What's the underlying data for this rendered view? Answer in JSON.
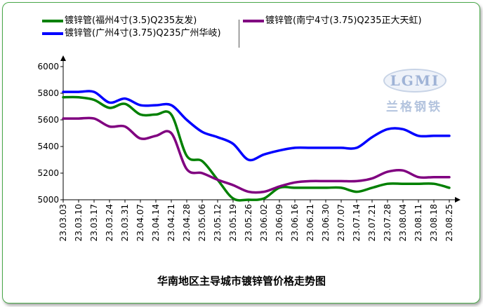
{
  "chart_data": {
    "type": "line",
    "title": "华南地区主导城市镀锌管价格走势图",
    "xlabel": "",
    "ylabel": "",
    "ylim": [
      5000,
      6000
    ],
    "yticks": [
      5000,
      5200,
      5400,
      5600,
      5800,
      6000
    ],
    "grid": false,
    "legend_position": "top",
    "x": [
      "23.03.03",
      "23.03.10",
      "23.03.17",
      "23.03.24",
      "23.03.31",
      "23.04.07",
      "23.04.14",
      "23.04.21",
      "23.04.28",
      "23.05.06",
      "23.05.12",
      "23.05.19",
      "23.05.26",
      "23.06.02",
      "23.06.09",
      "23.06.16",
      "23.06.21",
      "23.06.30",
      "23.07.07",
      "23.07.14",
      "23.07.21",
      "23.07.28",
      "23.08.04",
      "23.08.11",
      "23.08.18",
      "23.08.25"
    ],
    "series": [
      {
        "name": "镀锌管(福州4寸(3.5)Q235友发)",
        "color": "#008000",
        "values": [
          5770,
          5770,
          5750,
          5690,
          5720,
          5640,
          5640,
          5640,
          5330,
          5290,
          5150,
          5010,
          5000,
          5010,
          5090,
          5090,
          5090,
          5090,
          5090,
          5060,
          5090,
          5120,
          5120,
          5120,
          5120,
          5090
        ]
      },
      {
        "name": "镀锌管(广州4寸(3.75)Q235广州华岐)",
        "color": "#0000ff",
        "values": [
          5810,
          5810,
          5810,
          5730,
          5760,
          5710,
          5710,
          5710,
          5600,
          5510,
          5470,
          5420,
          5300,
          5340,
          5370,
          5390,
          5390,
          5390,
          5390,
          5390,
          5470,
          5530,
          5530,
          5480,
          5480,
          5480
        ]
      },
      {
        "name": "镀锌管(南宁4寸(3.75)Q235正大天虹)",
        "color": "#800080",
        "values": [
          5610,
          5610,
          5610,
          5550,
          5550,
          5460,
          5480,
          5500,
          5230,
          5200,
          5150,
          5110,
          5060,
          5060,
          5100,
          5130,
          5140,
          5140,
          5140,
          5140,
          5160,
          5210,
          5220,
          5170,
          5170,
          5170
        ]
      }
    ]
  },
  "logo": {
    "badge_text": "LGMI",
    "cn_text": "兰格钢铁"
  }
}
